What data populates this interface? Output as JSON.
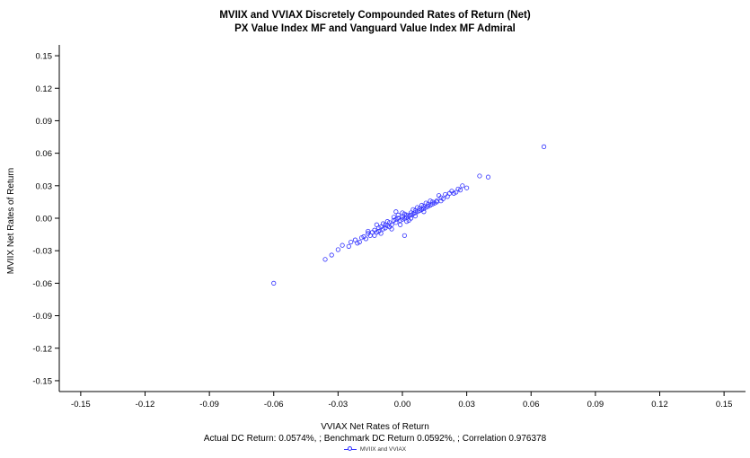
{
  "chart_data": {
    "type": "scatter",
    "title": "MVIIX and VVIAX Discretely Compounded Rates of Return (Net)",
    "subtitle": "PX Value Index MF and Vanguard Value Index MF Admiral",
    "xlabel": "VVIAX Net Rates of Return",
    "ylabel": "MVIIX Net Rates of Return",
    "note": "Actual DC Return: 0.0574%, ; Benchmark DC Return 0.0592%, ; Correlation 0.976378",
    "xlim": [
      -0.16,
      0.16
    ],
    "ylim": [
      -0.16,
      0.16
    ],
    "xticks": [
      "-0.15",
      "-0.12",
      "-0.09",
      "-0.06",
      "-0.03",
      "0.00",
      "0.03",
      "0.06",
      "0.09",
      "0.12",
      "0.15"
    ],
    "yticks": [
      "0.15",
      "0.12",
      "0.09",
      "0.06",
      "0.03",
      "0.00",
      "-0.03",
      "-0.06",
      "-0.09",
      "-0.12",
      "-0.15"
    ],
    "grid": false,
    "legend_position": "bottom",
    "series": [
      {
        "name": "MVIIX and VVIAX",
        "color": "#3030ff",
        "marker": "open-circle",
        "points": [
          [
            -0.06,
            -0.06
          ],
          [
            0.066,
            0.066
          ],
          [
            0.04,
            0.038
          ],
          [
            0.036,
            0.039
          ],
          [
            -0.036,
            -0.038
          ],
          [
            -0.033,
            -0.034
          ],
          [
            -0.03,
            -0.029
          ],
          [
            -0.028,
            -0.025
          ],
          [
            -0.025,
            -0.026
          ],
          [
            -0.022,
            -0.02
          ],
          [
            0.03,
            0.028
          ],
          [
            0.028,
            0.03
          ],
          [
            0.025,
            0.024
          ],
          [
            0.027,
            0.026
          ],
          [
            0.022,
            0.023
          ],
          [
            0.02,
            0.022
          ],
          [
            0.018,
            0.019
          ],
          [
            0.017,
            0.021
          ],
          [
            0.015,
            0.014
          ],
          [
            0.016,
            0.016
          ],
          [
            -0.018,
            -0.017
          ],
          [
            -0.016,
            -0.014
          ],
          [
            -0.015,
            -0.016
          ],
          [
            -0.013,
            -0.011
          ],
          [
            -0.012,
            -0.013
          ],
          [
            -0.01,
            -0.008
          ],
          [
            -0.009,
            -0.01
          ],
          [
            -0.008,
            -0.006
          ],
          [
            -0.007,
            -0.007
          ],
          [
            -0.006,
            -0.004
          ],
          [
            -0.005,
            -0.006
          ],
          [
            -0.004,
            -0.002
          ],
          [
            -0.003,
            -0.004
          ],
          [
            -0.002,
            0.0
          ],
          [
            -0.001,
            -0.002
          ],
          [
            0.0,
            0.001
          ],
          [
            0.001,
            0.0
          ],
          [
            0.002,
            0.003
          ],
          [
            0.003,
            0.002
          ],
          [
            0.004,
            0.005
          ],
          [
            0.005,
            0.004
          ],
          [
            0.006,
            0.007
          ],
          [
            0.007,
            0.006
          ],
          [
            0.008,
            0.009
          ],
          [
            0.009,
            0.008
          ],
          [
            0.01,
            0.011
          ],
          [
            0.011,
            0.01
          ],
          [
            0.012,
            0.013
          ],
          [
            0.013,
            0.012
          ],
          [
            0.014,
            0.015
          ],
          [
            -0.02,
            -0.022
          ],
          [
            -0.019,
            -0.018
          ],
          [
            -0.017,
            -0.019
          ],
          [
            -0.014,
            -0.013
          ],
          [
            -0.011,
            -0.012
          ],
          [
            -0.008,
            -0.009
          ],
          [
            -0.006,
            -0.008
          ],
          [
            -0.003,
            -0.001
          ],
          [
            0.0,
            -0.001
          ],
          [
            0.002,
            0.001
          ],
          [
            0.004,
            0.003
          ],
          [
            0.006,
            0.005
          ],
          [
            0.008,
            0.007
          ],
          [
            0.01,
            0.009
          ],
          [
            0.012,
            0.011
          ],
          [
            0.014,
            0.013
          ],
          [
            0.016,
            0.015
          ],
          [
            0.019,
            0.018
          ],
          [
            0.021,
            0.02
          ],
          [
            0.024,
            0.023
          ],
          [
            -0.002,
            0.003
          ],
          [
            0.003,
            -0.002
          ],
          [
            -0.004,
            0.001
          ],
          [
            0.005,
            0.008
          ],
          [
            0.001,
            0.004
          ],
          [
            -0.007,
            -0.003
          ],
          [
            0.007,
            0.01
          ],
          [
            -0.009,
            -0.005
          ],
          [
            0.009,
            0.012
          ],
          [
            -0.011,
            -0.009
          ],
          [
            0.011,
            0.014
          ],
          [
            -0.001,
            -0.006
          ],
          [
            0.002,
            -0.003
          ],
          [
            0.004,
            0.0
          ],
          [
            -0.016,
            -0.012
          ],
          [
            -0.021,
            -0.023
          ],
          [
            -0.024,
            -0.022
          ],
          [
            0.023,
            0.025
          ],
          [
            0.026,
            0.027
          ],
          [
            0.018,
            0.016
          ],
          [
            0.0,
            0.005
          ],
          [
            -0.005,
            -0.01
          ],
          [
            0.006,
            0.002
          ],
          [
            -0.01,
            -0.014
          ],
          [
            0.013,
            0.016
          ],
          [
            -0.013,
            -0.016
          ],
          [
            0.001,
            -0.016
          ],
          [
            -0.003,
            0.006
          ],
          [
            0.01,
            0.006
          ],
          [
            -0.012,
            -0.006
          ]
        ]
      }
    ]
  }
}
